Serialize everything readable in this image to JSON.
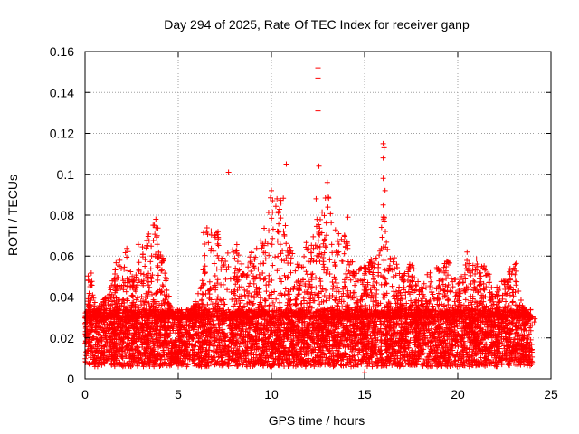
{
  "chart_data": {
    "type": "scatter",
    "title": "Day 294 of 2025, Rate Of TEC Index for receiver ganp",
    "xlabel": "GPS time / hours",
    "ylabel": "ROTI / TECUs",
    "xlim": [
      0,
      25
    ],
    "ylim": [
      0,
      0.16
    ],
    "xticks": [
      0,
      5,
      10,
      15,
      20,
      25
    ],
    "xtick_labels": [
      "0",
      "5",
      "10",
      "15",
      "20",
      "25"
    ],
    "yticks": [
      0,
      0.02,
      0.04,
      0.06,
      0.08,
      0.1,
      0.12,
      0.14,
      0.16
    ],
    "ytick_labels": [
      "0",
      "0.02",
      "0.04",
      "0.06",
      "0.08",
      "0.1",
      "0.12",
      "0.14",
      "0.16"
    ],
    "grid": true,
    "marker": "+",
    "series_color": "#ff0000",
    "x_range_of_data": [
      0,
      24
    ],
    "baseline_band": [
      0.01,
      0.03
    ],
    "notable_points": [
      {
        "x": 12.5,
        "y": 0.16
      },
      {
        "x": 12.5,
        "y": 0.152
      },
      {
        "x": 12.5,
        "y": 0.147
      },
      {
        "x": 12.5,
        "y": 0.131
      },
      {
        "x": 12.55,
        "y": 0.104
      },
      {
        "x": 10.8,
        "y": 0.105
      },
      {
        "x": 7.7,
        "y": 0.101
      },
      {
        "x": 16.0,
        "y": 0.115
      },
      {
        "x": 16.05,
        "y": 0.113
      },
      {
        "x": 16.0,
        "y": 0.108
      },
      {
        "x": 16.0,
        "y": 0.098
      },
      {
        "x": 16.1,
        "y": 0.092
      },
      {
        "x": 16.0,
        "y": 0.085
      },
      {
        "x": 16.05,
        "y": 0.079
      },
      {
        "x": 13.0,
        "y": 0.096
      },
      {
        "x": 12.4,
        "y": 0.088
      },
      {
        "x": 14.1,
        "y": 0.079
      },
      {
        "x": 10.0,
        "y": 0.092
      },
      {
        "x": 10.3,
        "y": 0.088
      },
      {
        "x": 3.8,
        "y": 0.078
      },
      {
        "x": 20.5,
        "y": 0.062
      },
      {
        "x": 15.0,
        "y": 0.003
      }
    ],
    "envelope_upper": [
      [
        0.0,
        0.028
      ],
      [
        0.3,
        0.052
      ],
      [
        0.6,
        0.034
      ],
      [
        1.0,
        0.04
      ],
      [
        1.4,
        0.048
      ],
      [
        1.8,
        0.058
      ],
      [
        2.2,
        0.066
      ],
      [
        2.6,
        0.048
      ],
      [
        3.0,
        0.066
      ],
      [
        3.4,
        0.072
      ],
      [
        3.8,
        0.078
      ],
      [
        4.2,
        0.058
      ],
      [
        4.6,
        0.036
      ],
      [
        5.0,
        0.028
      ],
      [
        5.5,
        0.032
      ],
      [
        6.0,
        0.038
      ],
      [
        6.5,
        0.074
      ],
      [
        7.0,
        0.076
      ],
      [
        7.5,
        0.06
      ],
      [
        8.0,
        0.068
      ],
      [
        8.5,
        0.054
      ],
      [
        9.0,
        0.062
      ],
      [
        9.5,
        0.07
      ],
      [
        10.0,
        0.09
      ],
      [
        10.5,
        0.09
      ],
      [
        11.0,
        0.066
      ],
      [
        11.5,
        0.056
      ],
      [
        12.0,
        0.068
      ],
      [
        12.5,
        0.078
      ],
      [
        13.0,
        0.09
      ],
      [
        13.5,
        0.074
      ],
      [
        14.0,
        0.07
      ],
      [
        14.5,
        0.052
      ],
      [
        15.0,
        0.056
      ],
      [
        15.5,
        0.06
      ],
      [
        16.0,
        0.08
      ],
      [
        16.5,
        0.06
      ],
      [
        17.0,
        0.052
      ],
      [
        17.5,
        0.058
      ],
      [
        18.0,
        0.044
      ],
      [
        18.5,
        0.052
      ],
      [
        19.0,
        0.056
      ],
      [
        19.5,
        0.058
      ],
      [
        20.0,
        0.046
      ],
      [
        20.5,
        0.058
      ],
      [
        21.0,
        0.06
      ],
      [
        21.5,
        0.056
      ],
      [
        22.0,
        0.044
      ],
      [
        22.5,
        0.05
      ],
      [
        23.0,
        0.058
      ],
      [
        23.5,
        0.036
      ],
      [
        24.0,
        0.03
      ]
    ]
  }
}
